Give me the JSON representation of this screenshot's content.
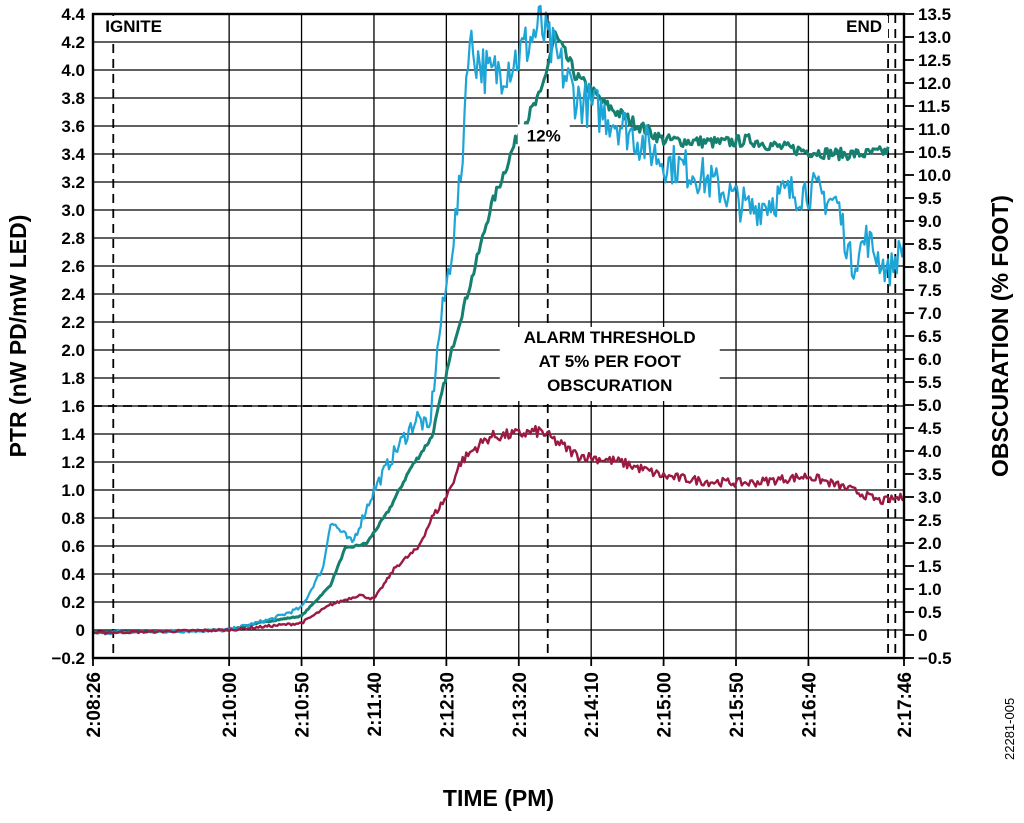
{
  "chart_data": {
    "type": "line",
    "xlabel": "TIME (PM)",
    "ylabel": "PTR (nW PD/mW LED)",
    "y2label": "OBSCURATION (% FOOT)",
    "x_tick_labels": [
      "2:08:26",
      "2:10:00",
      "2:10:50",
      "2:11:40",
      "2:12:30",
      "2:13:20",
      "2:14:10",
      "2:15:00",
      "2:15:50",
      "2:16:40",
      "2:17:46"
    ],
    "xlim": [
      "2:08:26",
      "2:17:46"
    ],
    "ylim": [
      -0.2,
      4.4
    ],
    "y_ticks": [
      "−0.2",
      "0",
      "0.2",
      "0.4",
      "0.6",
      "0.8",
      "1.0",
      "1.2",
      "1.4",
      "1.6",
      "1.8",
      "2.0",
      "2.2",
      "2.4",
      "2.6",
      "2.8",
      "3.0",
      "3.2",
      "3.4",
      "3.6",
      "3.8",
      "4.0",
      "4.2",
      "4.4"
    ],
    "y2lim": [
      -0.5,
      13.5
    ],
    "y2_ticks": [
      "−0.5",
      "0",
      "0.5",
      "1.0",
      "1.5",
      "2.0",
      "2.5",
      "3.0",
      "3.5",
      "4.0",
      "4.5",
      "5.0",
      "5.5",
      "6.0",
      "6.5",
      "7.0",
      "7.5",
      "8.0",
      "8.5",
      "9.0",
      "9.5",
      "10.0",
      "10.5",
      "11.0",
      "11.5",
      "12.0",
      "12.5",
      "13.0",
      "13.5"
    ],
    "grid": true,
    "series": [
      {
        "axis": "left",
        "color": "#1ea5d8",
        "x": [
          "2:08:26",
          "2:10:00",
          "2:10:30",
          "2:10:50",
          "2:11:05",
          "2:11:10",
          "2:11:25",
          "2:11:40",
          "2:11:55",
          "2:12:10",
          "2:12:18",
          "2:12:25",
          "2:12:30",
          "2:12:40",
          "2:12:45",
          "2:13:00",
          "2:13:20",
          "2:13:35",
          "2:13:40",
          "2:14:00",
          "2:14:30",
          "2:15:00",
          "2:15:20",
          "2:15:40",
          "2:16:00",
          "2:16:20",
          "2:16:40",
          "2:17:00",
          "2:17:10",
          "2:17:20",
          "2:17:35",
          "2:17:46"
        ],
        "y": [
          -0.02,
          0.0,
          0.08,
          0.16,
          0.45,
          0.78,
          0.62,
          1.0,
          1.28,
          1.52,
          1.42,
          2.1,
          2.45,
          3.2,
          4.2,
          3.95,
          4.1,
          4.32,
          4.2,
          3.8,
          3.62,
          3.35,
          3.28,
          3.15,
          3.0,
          3.1,
          3.15,
          3.05,
          2.6,
          2.8,
          2.55,
          2.75
        ]
      },
      {
        "axis": "left",
        "color": "#168070",
        "x": [
          "2:08:26",
          "2:10:00",
          "2:10:20",
          "2:10:50",
          "2:11:10",
          "2:11:20",
          "2:11:35",
          "2:11:50",
          "2:12:05",
          "2:12:20",
          "2:12:35",
          "2:12:50",
          "2:13:00",
          "2:13:20",
          "2:13:35",
          "2:13:45",
          "2:14:00",
          "2:14:20",
          "2:14:40",
          "2:15:00",
          "2:15:40",
          "2:16:00",
          "2:16:20",
          "2:16:40",
          "2:17:00",
          "2:17:20",
          "2:17:35"
        ],
        "y": [
          -0.02,
          0.0,
          0.05,
          0.1,
          0.32,
          0.58,
          0.62,
          0.85,
          1.15,
          1.38,
          2.05,
          2.6,
          3.0,
          3.55,
          3.82,
          4.25,
          3.95,
          3.75,
          3.62,
          3.5,
          3.48,
          3.5,
          3.45,
          3.42,
          3.4,
          3.4,
          3.42
        ]
      },
      {
        "axis": "left",
        "color": "#9a1a42",
        "x": [
          "2:08:26",
          "2:10:00",
          "2:10:50",
          "2:11:10",
          "2:11:30",
          "2:11:40",
          "2:11:55",
          "2:12:10",
          "2:12:20",
          "2:12:30",
          "2:12:40",
          "2:12:50",
          "2:13:00",
          "2:13:20",
          "2:13:35",
          "2:14:00",
          "2:14:30",
          "2:15:00",
          "2:15:30",
          "2:16:00",
          "2:16:40",
          "2:17:10",
          "2:17:30",
          "2:17:46"
        ],
        "y": [
          -0.02,
          0.0,
          0.05,
          0.18,
          0.25,
          0.22,
          0.45,
          0.58,
          0.8,
          0.95,
          1.2,
          1.3,
          1.38,
          1.4,
          1.42,
          1.25,
          1.2,
          1.1,
          1.06,
          1.05,
          1.1,
          1.0,
          0.92,
          0.95
        ]
      }
    ],
    "annotations": {
      "ignite": "IGNITE",
      "end": "END",
      "peak_label": "12%",
      "alarm_line1": "ALARM THRESHOLD",
      "alarm_line2": "AT 5% PER FOOT",
      "alarm_line3": "OBSCURATION",
      "alarm_threshold_ptr": 1.6,
      "ignite_time": "2:08:40",
      "peak_time": "2:13:40",
      "end_times": [
        "2:17:35",
        "2:17:40"
      ]
    },
    "figure_id": "22281-005"
  }
}
